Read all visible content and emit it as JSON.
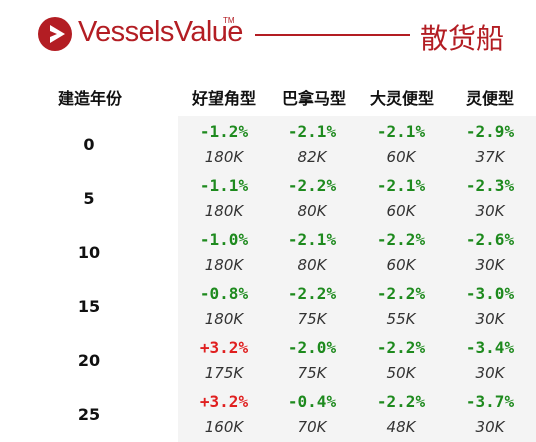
{
  "brand": {
    "name": "VesselsValue",
    "trademark": "TM",
    "logo_icon": "vesselsvalue-logo-icon",
    "color": "#b31d23"
  },
  "section_title": "散货船",
  "columns": {
    "year_header": "建造年份",
    "vessel_types": [
      "好望角型",
      "巴拿马型",
      "大灵便型",
      "灵便型"
    ]
  },
  "rows": [
    {
      "year": "0",
      "cells": [
        {
          "change": "-1.2%",
          "price": "180K"
        },
        {
          "change": "-2.1%",
          "price": "82K"
        },
        {
          "change": "-2.1%",
          "price": "60K"
        },
        {
          "change": "-2.9%",
          "price": "37K"
        }
      ]
    },
    {
      "year": "5",
      "cells": [
        {
          "change": "-1.1%",
          "price": "180K"
        },
        {
          "change": "-2.2%",
          "price": "80K"
        },
        {
          "change": "-2.1%",
          "price": "60K"
        },
        {
          "change": "-2.3%",
          "price": "30K"
        }
      ]
    },
    {
      "year": "10",
      "cells": [
        {
          "change": "-1.0%",
          "price": "180K"
        },
        {
          "change": "-2.1%",
          "price": "80K"
        },
        {
          "change": "-2.2%",
          "price": "60K"
        },
        {
          "change": "-2.6%",
          "price": "30K"
        }
      ]
    },
    {
      "year": "15",
      "cells": [
        {
          "change": "-0.8%",
          "price": "180K"
        },
        {
          "change": "-2.2%",
          "price": "75K"
        },
        {
          "change": "-2.2%",
          "price": "55K"
        },
        {
          "change": "-3.0%",
          "price": "30K"
        }
      ]
    },
    {
      "year": "20",
      "cells": [
        {
          "change": "+3.2%",
          "price": "175K"
        },
        {
          "change": "-2.0%",
          "price": "75K"
        },
        {
          "change": "-2.2%",
          "price": "50K"
        },
        {
          "change": "-3.4%",
          "price": "30K"
        }
      ]
    },
    {
      "year": "25",
      "cells": [
        {
          "change": "+3.2%",
          "price": "160K"
        },
        {
          "change": "-0.4%",
          "price": "70K"
        },
        {
          "change": "-2.2%",
          "price": "48K"
        },
        {
          "change": "-3.7%",
          "price": "30K"
        }
      ]
    }
  ],
  "colors": {
    "negative": "#1e8a1e",
    "positive": "#e01f1f",
    "cell_background": "#f4f4f4"
  }
}
